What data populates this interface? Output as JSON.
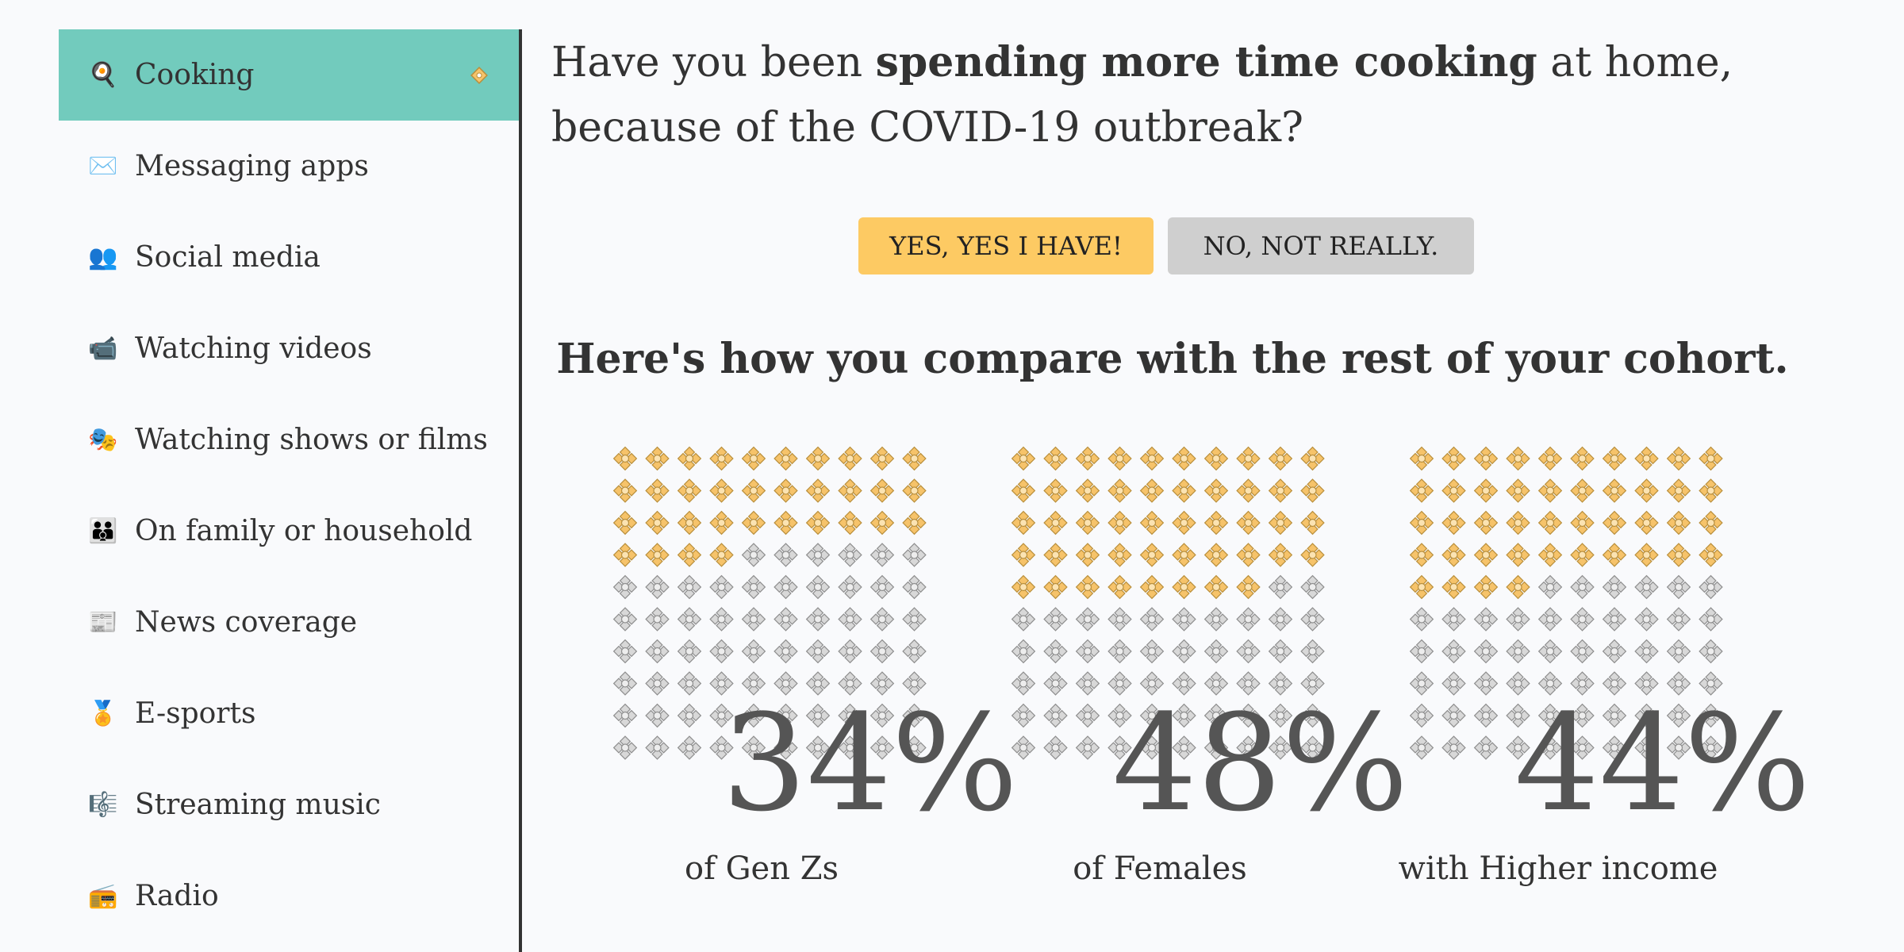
{
  "sidebar": {
    "items": [
      {
        "label": "Cooking",
        "icon": "frying-pan-icon",
        "active": true
      },
      {
        "label": "Messaging apps",
        "icon": "envelope-icon",
        "active": false
      },
      {
        "label": "Social media",
        "icon": "people-icon",
        "active": false
      },
      {
        "label": "Watching videos",
        "icon": "video-camera-icon",
        "active": false
      },
      {
        "label": "Watching shows or films",
        "icon": "theater-masks-icon",
        "active": false
      },
      {
        "label": "On family or household",
        "icon": "family-icon",
        "active": false
      },
      {
        "label": "News coverage",
        "icon": "newspaper-icon",
        "active": false
      },
      {
        "label": "E-sports",
        "icon": "medal-icon",
        "active": false
      },
      {
        "label": "Streaming music",
        "icon": "musical-score-icon",
        "active": false
      },
      {
        "label": "Radio",
        "icon": "radio-icon",
        "active": false
      }
    ]
  },
  "question": {
    "prefix": "Have you been ",
    "emphasis": "spending more time cooking",
    "suffix": " at home, because of the COVID-19 outbreak?"
  },
  "buttons": {
    "yes": "YES, YES I HAVE!",
    "no": "NO, NOT REALLY."
  },
  "compare_heading": "Here's how you compare with the rest of your cohort.",
  "stats": [
    {
      "percent": 34,
      "percent_label": "34%",
      "cohort": "of Gen Zs"
    },
    {
      "percent": 48,
      "percent_label": "48%",
      "cohort": "of Females"
    },
    {
      "percent": 44,
      "percent_label": "44%",
      "cohort": "with Higher income"
    }
  ],
  "colors": {
    "active_bg": "#72cbbd",
    "yes_bg": "#fdca63",
    "no_bg": "#cfcfcf",
    "filled_icon": "#f6c36a",
    "empty_icon": "#b5b5b5"
  }
}
